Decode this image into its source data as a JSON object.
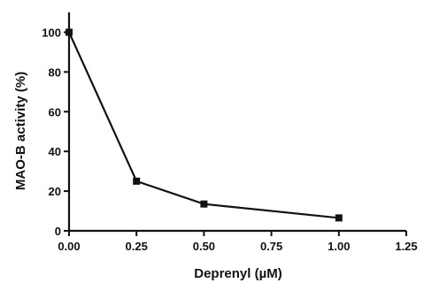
{
  "chart_data": {
    "type": "line",
    "xlabel": "Deprenyl (µM)",
    "ylabel": "MAO-B activity (%)",
    "xlim": [
      0,
      1.25
    ],
    "ylim": [
      0,
      110
    ],
    "x_ticks": [
      0,
      0.25,
      0.5,
      0.75,
      1.0,
      1.25
    ],
    "x_tick_labels": [
      "0.00",
      "0.25",
      "0.50",
      "0.75",
      "1.00",
      "1.25"
    ],
    "y_ticks": [
      0,
      20,
      40,
      60,
      80,
      100
    ],
    "y_tick_labels": [
      "0",
      "20",
      "40",
      "60",
      "80",
      "100"
    ],
    "grid": false,
    "series": [
      {
        "x": [
          0,
          0.25,
          0.5,
          1.0
        ],
        "y": [
          100,
          25,
          13.5,
          6.5
        ],
        "marker": "square",
        "color": "#111111"
      }
    ]
  }
}
